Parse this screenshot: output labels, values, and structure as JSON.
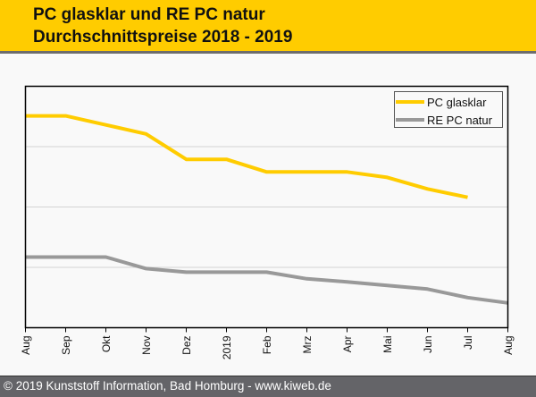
{
  "header": {
    "title_line1": "PC glasklar und RE PC natur",
    "title_line2": "Durchschnittspreise 2018 - 2019"
  },
  "footer": {
    "text": "© 2019 Kunststoff Information, Bad Homburg - www.kiweb.de"
  },
  "colors": {
    "header_bg": "#ffcc00",
    "footer_bg": "#646468",
    "pc_glasklar": "#ffcc00",
    "re_pc_natur": "#999999",
    "gridline": "#d4d4d4"
  },
  "chart_data": {
    "type": "line",
    "title": "PC glasklar und RE PC natur Durchschnittspreise 2018 - 2019",
    "xlabel": "",
    "ylabel": "",
    "categories": [
      "Aug",
      "Sep",
      "Okt",
      "Nov",
      "Dez",
      "2019",
      "Feb",
      "Mrz",
      "Apr",
      "Mai",
      "Jun",
      "Jul",
      "Aug"
    ],
    "ylim": [
      0,
      4
    ],
    "y_gridlines": [
      1,
      2,
      3
    ],
    "y_tick_labels_shown": false,
    "grid": true,
    "legend_position": "top-right",
    "series": [
      {
        "name": "PC glasklar",
        "color": "#ffcc00",
        "values": [
          3.51,
          3.51,
          3.36,
          3.21,
          2.79,
          2.79,
          2.58,
          2.58,
          2.58,
          2.49,
          2.3,
          2.16,
          null
        ]
      },
      {
        "name": "RE PC natur",
        "color": "#999999",
        "values": [
          1.17,
          1.17,
          1.17,
          0.98,
          0.92,
          0.92,
          0.92,
          0.81,
          0.76,
          0.7,
          0.64,
          0.5,
          0.41
        ]
      }
    ]
  }
}
